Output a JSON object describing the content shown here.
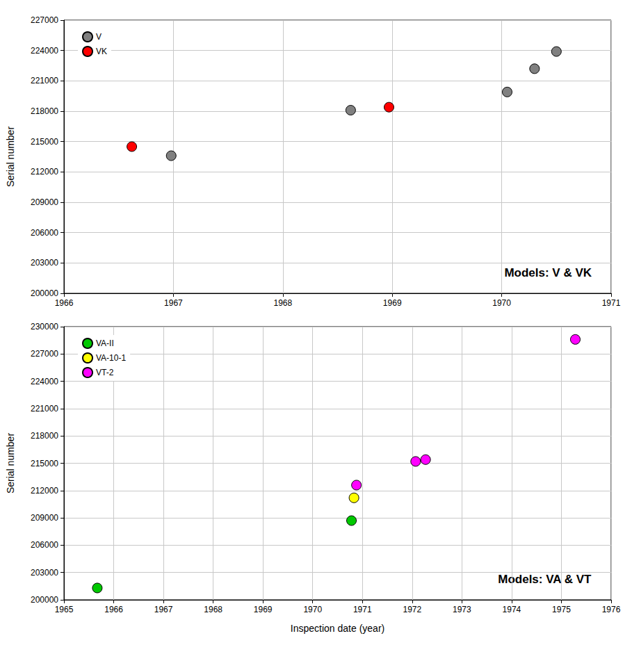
{
  "chart_data": [
    {
      "type": "scatter",
      "y_label": "Serial number",
      "annotation": "Models: V & VK",
      "xlim": [
        1966,
        1971
      ],
      "xticks": [
        1966,
        1967,
        1968,
        1969,
        1970,
        1971
      ],
      "ylim": [
        200000,
        227000
      ],
      "yticks": [
        200000,
        203000,
        206000,
        209000,
        212000,
        215000,
        218000,
        221000,
        224000,
        227000
      ],
      "grid": true,
      "legend": "upper left",
      "marker": "circle",
      "series": [
        {
          "name": "V",
          "color": "#808080",
          "x": [
            1966.98,
            1968.62,
            1970.05,
            1970.3,
            1970.5
          ],
          "values": [
            213600,
            218100,
            219900,
            222200,
            223900
          ]
        },
        {
          "name": "VK",
          "color": "#ff0000",
          "x": [
            1966.62,
            1968.97
          ],
          "values": [
            214500,
            218400
          ]
        }
      ]
    },
    {
      "type": "scatter",
      "x_label": "Inspection date (year)",
      "y_label": "Serial number",
      "annotation": "Models: VA & VT",
      "xlim": [
        1965,
        1976
      ],
      "xticks": [
        1965,
        1966,
        1967,
        1968,
        1969,
        1970,
        1971,
        1972,
        1973,
        1974,
        1975,
        1976
      ],
      "ylim": [
        200000,
        230000
      ],
      "yticks": [
        200000,
        203000,
        206000,
        209000,
        212000,
        215000,
        218000,
        221000,
        224000,
        227000,
        230000
      ],
      "grid": true,
      "legend": "upper left",
      "marker": "circle",
      "series": [
        {
          "name": "VA-II",
          "color": "#00c800",
          "x": [
            1965.67,
            1970.78
          ],
          "values": [
            201300,
            208700
          ]
        },
        {
          "name": "VA-10-1",
          "color": "#ffff00",
          "x": [
            1970.83
          ],
          "values": [
            211200
          ]
        },
        {
          "name": "VT-2",
          "color": "#ff00ff",
          "x": [
            1970.88,
            1972.07,
            1972.27,
            1975.28
          ],
          "values": [
            212600,
            215200,
            215400,
            228600
          ]
        }
      ]
    }
  ]
}
